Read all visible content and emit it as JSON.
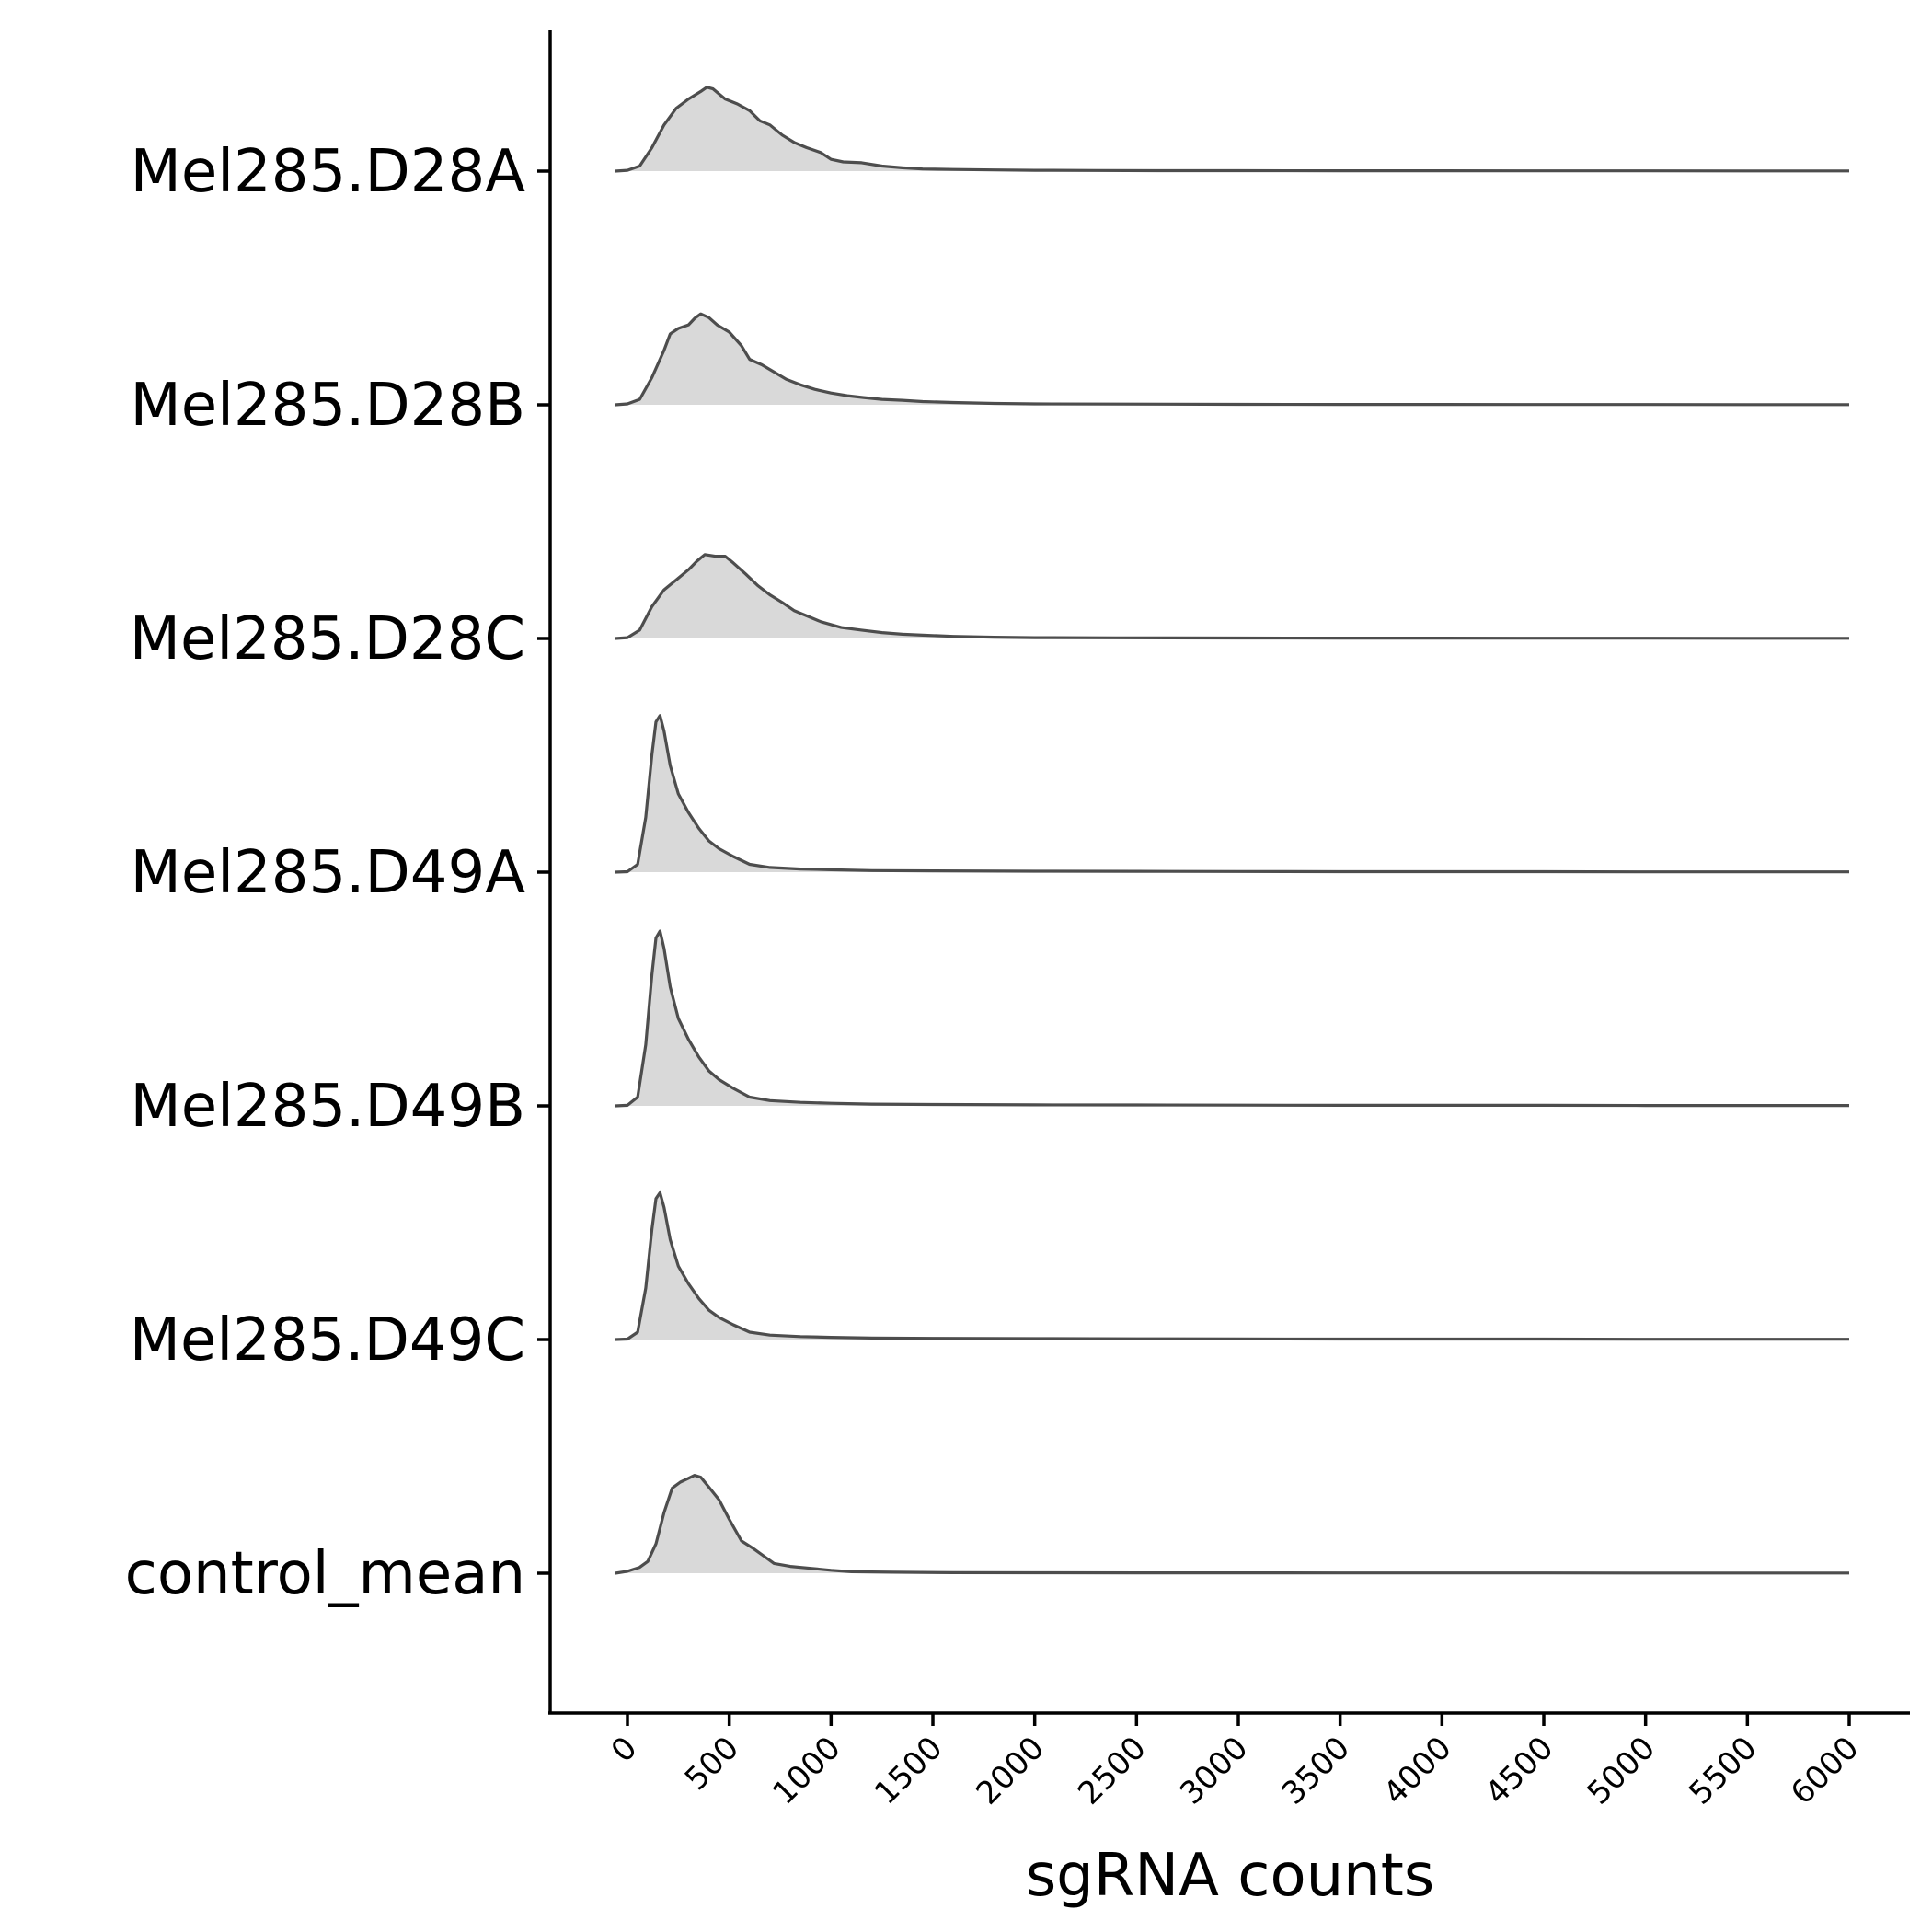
{
  "chart_data": {
    "type": "ridgeline",
    "xlabel": "sgRNA counts",
    "ylabel": "",
    "xlim": [
      -380,
      6300
    ],
    "x_ticks": [
      0,
      500,
      1000,
      1500,
      2000,
      2500,
      3000,
      3500,
      4000,
      4500,
      5000,
      5500,
      6000
    ],
    "x_tick_labels": [
      "0",
      "500",
      "1000",
      "1500",
      "2000",
      "2500",
      "3000",
      "3500",
      "4000",
      "4500",
      "5000",
      "5500",
      "6000"
    ],
    "grid": false,
    "legend": "none",
    "fill_color": "#d9d9d9",
    "line_color": "#4d4d4d",
    "series": [
      {
        "name": "Mel285.D28A",
        "peak_height": 0.6,
        "points": [
          [
            -60,
            0
          ],
          [
            0,
            0.01
          ],
          [
            60,
            0.06
          ],
          [
            120,
            0.28
          ],
          [
            180,
            0.55
          ],
          [
            240,
            0.75
          ],
          [
            300,
            0.86
          ],
          [
            360,
            0.95
          ],
          [
            390,
            1.0
          ],
          [
            420,
            0.98
          ],
          [
            480,
            0.86
          ],
          [
            540,
            0.8
          ],
          [
            600,
            0.72
          ],
          [
            650,
            0.6
          ],
          [
            700,
            0.55
          ],
          [
            760,
            0.43
          ],
          [
            820,
            0.34
          ],
          [
            880,
            0.28
          ],
          [
            950,
            0.22
          ],
          [
            1000,
            0.14
          ],
          [
            1060,
            0.11
          ],
          [
            1150,
            0.1
          ],
          [
            1250,
            0.06
          ],
          [
            1350,
            0.04
          ],
          [
            1450,
            0.025
          ],
          [
            1600,
            0.02
          ],
          [
            1800,
            0.014
          ],
          [
            2000,
            0.01
          ],
          [
            2300,
            0.008
          ],
          [
            2600,
            0.006
          ],
          [
            3000,
            0.005
          ],
          [
            3500,
            0.004
          ],
          [
            4000,
            0.004
          ],
          [
            4500,
            0.003
          ],
          [
            5000,
            0.003
          ],
          [
            5500,
            0.002
          ],
          [
            6000,
            0.002
          ]
        ]
      },
      {
        "name": "Mel285.D28B",
        "peak_height": 0.65,
        "points": [
          [
            -60,
            0
          ],
          [
            0,
            0.01
          ],
          [
            60,
            0.06
          ],
          [
            120,
            0.3
          ],
          [
            180,
            0.6
          ],
          [
            210,
            0.78
          ],
          [
            250,
            0.84
          ],
          [
            300,
            0.88
          ],
          [
            330,
            0.95
          ],
          [
            360,
            1.0
          ],
          [
            400,
            0.96
          ],
          [
            440,
            0.88
          ],
          [
            500,
            0.8
          ],
          [
            560,
            0.65
          ],
          [
            600,
            0.5
          ],
          [
            660,
            0.44
          ],
          [
            720,
            0.36
          ],
          [
            780,
            0.28
          ],
          [
            850,
            0.22
          ],
          [
            920,
            0.17
          ],
          [
            1000,
            0.13
          ],
          [
            1080,
            0.1
          ],
          [
            1160,
            0.08
          ],
          [
            1250,
            0.06
          ],
          [
            1350,
            0.05
          ],
          [
            1450,
            0.035
          ],
          [
            1600,
            0.025
          ],
          [
            1800,
            0.015
          ],
          [
            2000,
            0.01
          ],
          [
            2400,
            0.008
          ],
          [
            3000,
            0.005
          ],
          [
            3500,
            0.004
          ],
          [
            4000,
            0.004
          ],
          [
            4500,
            0.003
          ],
          [
            5000,
            0.003
          ],
          [
            5500,
            0.002
          ],
          [
            6000,
            0.002
          ]
        ]
      },
      {
        "name": "Mel285.D28C",
        "peak_height": 0.6,
        "points": [
          [
            -60,
            0
          ],
          [
            0,
            0.01
          ],
          [
            60,
            0.1
          ],
          [
            120,
            0.38
          ],
          [
            180,
            0.58
          ],
          [
            240,
            0.7
          ],
          [
            300,
            0.82
          ],
          [
            340,
            0.92
          ],
          [
            380,
            1.0
          ],
          [
            430,
            0.98
          ],
          [
            480,
            0.98
          ],
          [
            520,
            0.9
          ],
          [
            580,
            0.77
          ],
          [
            640,
            0.63
          ],
          [
            700,
            0.52
          ],
          [
            760,
            0.43
          ],
          [
            820,
            0.33
          ],
          [
            880,
            0.27
          ],
          [
            950,
            0.2
          ],
          [
            1050,
            0.13
          ],
          [
            1150,
            0.1
          ],
          [
            1250,
            0.07
          ],
          [
            1350,
            0.05
          ],
          [
            1450,
            0.04
          ],
          [
            1600,
            0.025
          ],
          [
            1800,
            0.015
          ],
          [
            2000,
            0.01
          ],
          [
            2400,
            0.008
          ],
          [
            3000,
            0.005
          ],
          [
            3500,
            0.004
          ],
          [
            4000,
            0.004
          ],
          [
            4500,
            0.003
          ],
          [
            5000,
            0.003
          ],
          [
            5500,
            0.002
          ],
          [
            6000,
            0.002
          ]
        ]
      },
      {
        "name": "Mel285.D49A",
        "peak_height": 1.12,
        "points": [
          [
            -60,
            0
          ],
          [
            0,
            0.003
          ],
          [
            50,
            0.05
          ],
          [
            90,
            0.35
          ],
          [
            120,
            0.75
          ],
          [
            140,
            0.96
          ],
          [
            160,
            1.0
          ],
          [
            180,
            0.9
          ],
          [
            210,
            0.68
          ],
          [
            250,
            0.5
          ],
          [
            300,
            0.38
          ],
          [
            350,
            0.28
          ],
          [
            400,
            0.2
          ],
          [
            450,
            0.15
          ],
          [
            520,
            0.1
          ],
          [
            600,
            0.05
          ],
          [
            700,
            0.03
          ],
          [
            850,
            0.02
          ],
          [
            1000,
            0.015
          ],
          [
            1200,
            0.01
          ],
          [
            1500,
            0.008
          ],
          [
            2000,
            0.006
          ],
          [
            2500,
            0.005
          ],
          [
            3000,
            0.004
          ],
          [
            3500,
            0.003
          ],
          [
            4000,
            0.003
          ],
          [
            4500,
            0.003
          ],
          [
            5000,
            0.002
          ],
          [
            5500,
            0.002
          ],
          [
            6000,
            0.002
          ]
        ]
      },
      {
        "name": "Mel285.D49B",
        "peak_height": 1.25,
        "points": [
          [
            -60,
            0
          ],
          [
            0,
            0.003
          ],
          [
            50,
            0.05
          ],
          [
            90,
            0.35
          ],
          [
            120,
            0.75
          ],
          [
            140,
            0.96
          ],
          [
            160,
            1.0
          ],
          [
            180,
            0.9
          ],
          [
            210,
            0.68
          ],
          [
            250,
            0.5
          ],
          [
            300,
            0.38
          ],
          [
            350,
            0.28
          ],
          [
            400,
            0.2
          ],
          [
            450,
            0.15
          ],
          [
            520,
            0.1
          ],
          [
            600,
            0.05
          ],
          [
            700,
            0.03
          ],
          [
            850,
            0.02
          ],
          [
            1000,
            0.015
          ],
          [
            1200,
            0.01
          ],
          [
            1500,
            0.008
          ],
          [
            2000,
            0.006
          ],
          [
            2500,
            0.005
          ],
          [
            3000,
            0.004
          ],
          [
            3500,
            0.003
          ],
          [
            4000,
            0.003
          ],
          [
            4500,
            0.003
          ],
          [
            5000,
            0.002
          ],
          [
            5500,
            0.002
          ],
          [
            6000,
            0.002
          ]
        ]
      },
      {
        "name": "Mel285.D49C",
        "peak_height": 1.05,
        "points": [
          [
            -60,
            0
          ],
          [
            0,
            0.003
          ],
          [
            50,
            0.05
          ],
          [
            90,
            0.35
          ],
          [
            120,
            0.75
          ],
          [
            140,
            0.96
          ],
          [
            160,
            1.0
          ],
          [
            180,
            0.9
          ],
          [
            210,
            0.68
          ],
          [
            250,
            0.5
          ],
          [
            300,
            0.38
          ],
          [
            350,
            0.28
          ],
          [
            400,
            0.2
          ],
          [
            450,
            0.15
          ],
          [
            520,
            0.1
          ],
          [
            600,
            0.05
          ],
          [
            700,
            0.03
          ],
          [
            850,
            0.02
          ],
          [
            1000,
            0.015
          ],
          [
            1200,
            0.01
          ],
          [
            1500,
            0.008
          ],
          [
            2000,
            0.006
          ],
          [
            2500,
            0.005
          ],
          [
            3000,
            0.004
          ],
          [
            3500,
            0.003
          ],
          [
            4000,
            0.003
          ],
          [
            4500,
            0.003
          ],
          [
            5000,
            0.002
          ],
          [
            5500,
            0.002
          ],
          [
            6000,
            0.002
          ]
        ]
      },
      {
        "name": "control_mean",
        "peak_height": 0.7,
        "points": [
          [
            -60,
            0
          ],
          [
            0,
            0.02
          ],
          [
            60,
            0.06
          ],
          [
            100,
            0.12
          ],
          [
            140,
            0.3
          ],
          [
            180,
            0.62
          ],
          [
            220,
            0.87
          ],
          [
            260,
            0.93
          ],
          [
            300,
            0.97
          ],
          [
            330,
            1.0
          ],
          [
            360,
            0.98
          ],
          [
            400,
            0.88
          ],
          [
            450,
            0.75
          ],
          [
            500,
            0.55
          ],
          [
            560,
            0.33
          ],
          [
            620,
            0.25
          ],
          [
            680,
            0.16
          ],
          [
            720,
            0.1
          ],
          [
            800,
            0.07
          ],
          [
            900,
            0.05
          ],
          [
            1000,
            0.03
          ],
          [
            1100,
            0.015
          ],
          [
            1300,
            0.01
          ],
          [
            1600,
            0.006
          ],
          [
            2000,
            0.005
          ],
          [
            2500,
            0.004
          ],
          [
            3000,
            0.004
          ],
          [
            3500,
            0.003
          ],
          [
            4000,
            0.003
          ],
          [
            4500,
            0.003
          ],
          [
            5000,
            0.002
          ],
          [
            5500,
            0.002
          ],
          [
            6000,
            0.002
          ]
        ]
      }
    ]
  }
}
